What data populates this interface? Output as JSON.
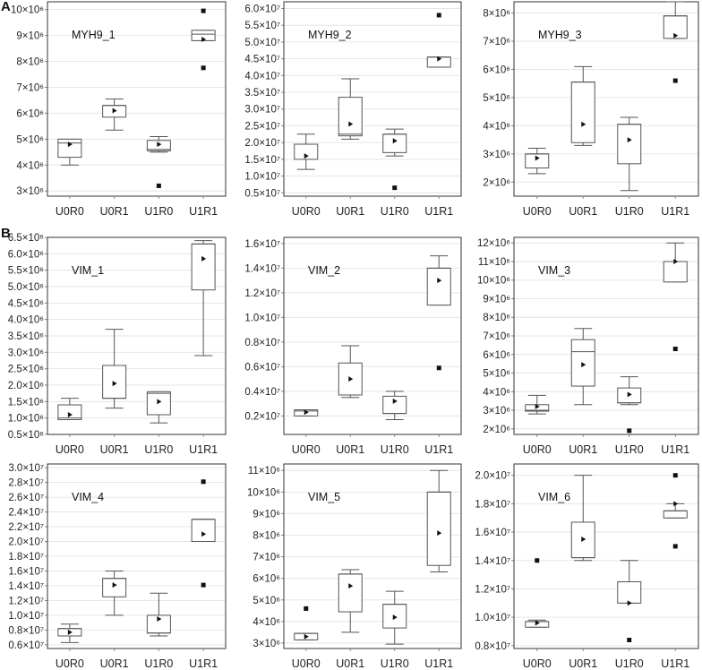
{
  "figure": {
    "panel_A": "A",
    "panel_B": "B"
  },
  "chart_data": [
    {
      "type": "box",
      "title": "MYH9_1",
      "categories": [
        "U0R0",
        "U0R1",
        "U1R0",
        "U1R1"
      ],
      "ylim": [
        2.8,
        10.3
      ],
      "yticks": [
        {
          "v": 3,
          "label": "3×10⁶"
        },
        {
          "v": 4,
          "label": "4×10⁶"
        },
        {
          "v": 5,
          "label": "5×10⁶"
        },
        {
          "v": 6,
          "label": "6×10⁶"
        },
        {
          "v": 7,
          "label": "7×10⁶"
        },
        {
          "v": 8,
          "label": "8×10⁶"
        },
        {
          "v": 9,
          "label": "9×10⁶"
        },
        {
          "v": 10,
          "label": "10×10⁶"
        }
      ],
      "boxes": [
        {
          "category": "U0R0",
          "whisker_low": 4.0,
          "q1": 4.3,
          "median": 4.85,
          "q3": 5.0,
          "whisker_high": 5.0,
          "mean": 4.8,
          "outliers": []
        },
        {
          "category": "U0R1",
          "whisker_low": 5.35,
          "q1": 5.85,
          "median": 6.3,
          "q3": 6.3,
          "whisker_high": 6.55,
          "mean": 6.1,
          "outliers": []
        },
        {
          "category": "U1R0",
          "whisker_low": 4.5,
          "q1": 4.55,
          "median": 4.6,
          "q3": 4.95,
          "whisker_high": 5.1,
          "mean": 4.8,
          "outliers": [
            3.2
          ]
        },
        {
          "category": "U1R1",
          "whisker_low": 8.8,
          "q1": 8.8,
          "median": 9.05,
          "q3": 9.2,
          "whisker_high": 9.2,
          "mean": 8.85,
          "outliers": [
            9.95,
            7.75
          ]
        }
      ]
    },
    {
      "type": "box",
      "title": "MYH9_2",
      "categories": [
        "U0R0",
        "U0R1",
        "U1R0",
        "U1R1"
      ],
      "ylim": [
        0.4,
        6.2
      ],
      "yticks": [
        {
          "v": 0.5,
          "label": "0.5×10⁷"
        },
        {
          "v": 1.0,
          "label": "1.0×10⁷"
        },
        {
          "v": 1.5,
          "label": "1.5×10⁷"
        },
        {
          "v": 2.0,
          "label": "2.0×10⁷"
        },
        {
          "v": 2.5,
          "label": "2.5×10⁷"
        },
        {
          "v": 3.0,
          "label": "3.0×10⁷"
        },
        {
          "v": 3.5,
          "label": "3.5×10⁷"
        },
        {
          "v": 4.0,
          "label": "4.0×10⁷"
        },
        {
          "v": 4.5,
          "label": "4.5×10⁷"
        },
        {
          "v": 5.0,
          "label": "5.0×10⁷"
        },
        {
          "v": 5.5,
          "label": "5.5×10⁷"
        },
        {
          "v": 6.0,
          "label": "6.0×10⁷"
        }
      ],
      "boxes": [
        {
          "category": "U0R0",
          "whisker_low": 1.2,
          "q1": 1.5,
          "median": 1.95,
          "q3": 1.95,
          "whisker_high": 2.25,
          "mean": 1.6,
          "outliers": []
        },
        {
          "category": "U0R1",
          "whisker_low": 2.1,
          "q1": 2.2,
          "median": 2.25,
          "q3": 3.35,
          "whisker_high": 3.9,
          "mean": 2.55,
          "outliers": []
        },
        {
          "category": "U1R0",
          "whisker_low": 1.6,
          "q1": 1.7,
          "median": 2.25,
          "q3": 2.25,
          "whisker_high": 2.4,
          "mean": 2.05,
          "outliers": [
            0.65
          ]
        },
        {
          "category": "U1R1",
          "whisker_low": 4.25,
          "q1": 4.25,
          "median": 4.55,
          "q3": 4.55,
          "whisker_high": 4.55,
          "mean": 4.5,
          "outliers": [
            5.8
          ]
        }
      ]
    },
    {
      "type": "box",
      "title": "MYH9_3",
      "categories": [
        "U0R0",
        "U0R1",
        "U1R0",
        "U1R1"
      ],
      "ylim": [
        1.5,
        8.4
      ],
      "yticks": [
        {
          "v": 2,
          "label": "2×10⁶"
        },
        {
          "v": 3,
          "label": "3×10⁶"
        },
        {
          "v": 4,
          "label": "4×10⁶"
        },
        {
          "v": 5,
          "label": "5×10⁶"
        },
        {
          "v": 6,
          "label": "6×10⁶"
        },
        {
          "v": 7,
          "label": "7×10⁶"
        },
        {
          "v": 8,
          "label": "8×10⁶"
        }
      ],
      "boxes": [
        {
          "category": "U0R0",
          "whisker_low": 2.3,
          "q1": 2.5,
          "median": 3.0,
          "q3": 3.0,
          "whisker_high": 3.2,
          "mean": 2.85,
          "outliers": []
        },
        {
          "category": "U0R1",
          "whisker_low": 3.3,
          "q1": 3.4,
          "median": 5.55,
          "q3": 5.55,
          "whisker_high": 6.1,
          "mean": 4.05,
          "outliers": []
        },
        {
          "category": "U1R0",
          "whisker_low": 1.7,
          "q1": 2.65,
          "median": 4.05,
          "q3": 4.05,
          "whisker_high": 4.3,
          "mean": 3.5,
          "outliers": []
        },
        {
          "category": "U1R1",
          "whisker_low": 7.1,
          "q1": 7.1,
          "median": 7.9,
          "q3": 7.9,
          "whisker_high": 8.4,
          "mean": 7.2,
          "outliers": [
            5.6
          ]
        }
      ]
    },
    {
      "type": "box",
      "title": "VIM_1",
      "categories": [
        "U0R0",
        "U0R1",
        "U1R0",
        "U1R1"
      ],
      "ylim": [
        0.5,
        6.5
      ],
      "yticks": [
        {
          "v": 0.5,
          "label": "0.5×10⁶"
        },
        {
          "v": 1.0,
          "label": "1.0×10⁶"
        },
        {
          "v": 1.5,
          "label": "1.5×10⁶"
        },
        {
          "v": 2.0,
          "label": "2.0×10⁶"
        },
        {
          "v": 2.5,
          "label": "2.5×10⁶"
        },
        {
          "v": 3.0,
          "label": "3.0×10⁶"
        },
        {
          "v": 3.5,
          "label": "3.5×10⁶"
        },
        {
          "v": 4.0,
          "label": "4.0×10⁶"
        },
        {
          "v": 4.5,
          "label": "4.5×10⁶"
        },
        {
          "v": 5.0,
          "label": "5.0×10⁶"
        },
        {
          "v": 5.5,
          "label": "5.5×10⁶"
        },
        {
          "v": 6.0,
          "label": "6.0×10⁶"
        },
        {
          "v": 6.5,
          "label": "6.5×10⁶"
        }
      ],
      "boxes": [
        {
          "category": "U0R0",
          "whisker_low": 0.95,
          "q1": 0.95,
          "median": 1.0,
          "q3": 1.4,
          "whisker_high": 1.6,
          "mean": 1.1,
          "outliers": []
        },
        {
          "category": "U0R1",
          "whisker_low": 1.3,
          "q1": 1.6,
          "median": 1.6,
          "q3": 2.6,
          "whisker_high": 3.7,
          "mean": 2.05,
          "outliers": []
        },
        {
          "category": "U1R0",
          "whisker_low": 0.85,
          "q1": 1.1,
          "median": 1.75,
          "q3": 1.8,
          "whisker_high": 1.8,
          "mean": 1.5,
          "outliers": []
        },
        {
          "category": "U1R1",
          "whisker_low": 2.9,
          "q1": 4.9,
          "median": 6.3,
          "q3": 6.3,
          "whisker_high": 6.4,
          "mean": 5.85,
          "outliers": []
        }
      ]
    },
    {
      "type": "box",
      "title": "VIM_2",
      "categories": [
        "U0R0",
        "U0R1",
        "U1R0",
        "U1R1"
      ],
      "ylim": [
        0.05,
        1.65
      ],
      "yticks": [
        {
          "v": 0.2,
          "label": "0.2×10⁷"
        },
        {
          "v": 0.4,
          "label": "0.4×10⁷"
        },
        {
          "v": 0.6,
          "label": "0.6×10⁷"
        },
        {
          "v": 0.8,
          "label": "0.8×10⁷"
        },
        {
          "v": 1.0,
          "label": "1.0×10⁷"
        },
        {
          "v": 1.2,
          "label": "1.2×10⁷"
        },
        {
          "v": 1.4,
          "label": "1.4×10⁷"
        },
        {
          "v": 1.6,
          "label": "1.6×10⁷"
        }
      ],
      "boxes": [
        {
          "category": "U0R0",
          "whisker_low": 0.2,
          "q1": 0.2,
          "median": 0.24,
          "q3": 0.25,
          "whisker_high": 0.25,
          "mean": 0.23,
          "outliers": []
        },
        {
          "category": "U0R1",
          "whisker_low": 0.35,
          "q1": 0.37,
          "median": 0.37,
          "q3": 0.63,
          "whisker_high": 0.77,
          "mean": 0.5,
          "outliers": []
        },
        {
          "category": "U1R0",
          "whisker_low": 0.17,
          "q1": 0.22,
          "median": 0.22,
          "q3": 0.36,
          "whisker_high": 0.4,
          "mean": 0.32,
          "outliers": []
        },
        {
          "category": "U1R1",
          "whisker_low": 1.1,
          "q1": 1.1,
          "median": 1.4,
          "q3": 1.4,
          "whisker_high": 1.5,
          "mean": 1.3,
          "outliers": [
            0.59
          ]
        }
      ]
    },
    {
      "type": "box",
      "title": "VIM_3",
      "categories": [
        "U0R0",
        "U0R1",
        "U1R0",
        "U1R1"
      ],
      "ylim": [
        1.7,
        12.3
      ],
      "yticks": [
        {
          "v": 2,
          "label": "2×10⁶"
        },
        {
          "v": 3,
          "label": "3×10⁶"
        },
        {
          "v": 4,
          "label": "4×10⁶"
        },
        {
          "v": 5,
          "label": "5×10⁶"
        },
        {
          "v": 6,
          "label": "6×10⁶"
        },
        {
          "v": 7,
          "label": "7×10⁶"
        },
        {
          "v": 8,
          "label": "8×10⁶"
        },
        {
          "v": 9,
          "label": "9×10⁶"
        },
        {
          "v": 10,
          "label": "10×10⁶"
        },
        {
          "v": 11,
          "label": "11×10⁶"
        },
        {
          "v": 12,
          "label": "12×10⁶"
        }
      ],
      "boxes": [
        {
          "category": "U0R0",
          "whisker_low": 2.8,
          "q1": 2.95,
          "median": 3.0,
          "q3": 3.3,
          "whisker_high": 3.8,
          "mean": 3.2,
          "outliers": []
        },
        {
          "category": "U0R1",
          "whisker_low": 3.3,
          "q1": 4.3,
          "median": 6.15,
          "q3": 6.8,
          "whisker_high": 7.4,
          "mean": 5.45,
          "outliers": []
        },
        {
          "category": "U1R0",
          "whisker_low": 3.3,
          "q1": 3.4,
          "median": 3.4,
          "q3": 4.2,
          "whisker_high": 4.8,
          "mean": 3.85,
          "outliers": [
            1.9
          ]
        },
        {
          "category": "U1R1",
          "whisker_low": 9.9,
          "q1": 9.9,
          "median": 11.0,
          "q3": 11.0,
          "whisker_high": 12.0,
          "mean": 11.0,
          "outliers": [
            6.3
          ]
        }
      ]
    },
    {
      "type": "box",
      "title": "VIM_4",
      "categories": [
        "U0R0",
        "U0R1",
        "U1R0",
        "U1R1"
      ],
      "ylim": [
        0.55,
        3.05
      ],
      "yticks": [
        {
          "v": 0.6,
          "label": "0.6×10⁷"
        },
        {
          "v": 0.8,
          "label": "0.8×10⁷"
        },
        {
          "v": 1.0,
          "label": "1.0×10⁷"
        },
        {
          "v": 1.2,
          "label": "1.2×10⁷"
        },
        {
          "v": 1.4,
          "label": "1.4×10⁷"
        },
        {
          "v": 1.6,
          "label": "1.6×10⁷"
        },
        {
          "v": 1.8,
          "label": "1.8×10⁷"
        },
        {
          "v": 2.0,
          "label": "2.0×10⁷"
        },
        {
          "v": 2.2,
          "label": "2.2×10⁷"
        },
        {
          "v": 2.4,
          "label": "2.4×10⁷"
        },
        {
          "v": 2.6,
          "label": "2.6×10⁷"
        },
        {
          "v": 2.8,
          "label": "2.8×10⁷"
        },
        {
          "v": 3.0,
          "label": "3.0×10⁷"
        }
      ],
      "boxes": [
        {
          "category": "U0R0",
          "whisker_low": 0.63,
          "q1": 0.72,
          "median": 0.82,
          "q3": 0.82,
          "whisker_high": 0.88,
          "mean": 0.77,
          "outliers": []
        },
        {
          "category": "U0R1",
          "whisker_low": 1.0,
          "q1": 1.25,
          "median": 1.5,
          "q3": 1.5,
          "whisker_high": 1.6,
          "mean": 1.41,
          "outliers": []
        },
        {
          "category": "U1R0",
          "whisker_low": 0.72,
          "q1": 0.76,
          "median": 0.76,
          "q3": 1.0,
          "whisker_high": 1.3,
          "mean": 0.95,
          "outliers": []
        },
        {
          "category": "U1R1",
          "whisker_low": 2.0,
          "q1": 2.0,
          "median": 2.3,
          "q3": 2.3,
          "whisker_high": 2.3,
          "mean": 2.1,
          "outliers": [
            2.81,
            1.41
          ]
        }
      ]
    },
    {
      "type": "box",
      "title": "VIM_5",
      "categories": [
        "U0R0",
        "U0R1",
        "U1R0",
        "U1R1"
      ],
      "ylim": [
        2.75,
        11.3
      ],
      "yticks": [
        {
          "v": 3,
          "label": "3×10⁶"
        },
        {
          "v": 4,
          "label": "4×10⁶"
        },
        {
          "v": 5,
          "label": "5×10⁶"
        },
        {
          "v": 6,
          "label": "6×10⁶"
        },
        {
          "v": 7,
          "label": "7×10⁶"
        },
        {
          "v": 8,
          "label": "8×10⁶"
        },
        {
          "v": 9,
          "label": "9×10⁶"
        },
        {
          "v": 10,
          "label": "10×10⁶"
        },
        {
          "v": 11,
          "label": "11×10⁶"
        }
      ],
      "boxes": [
        {
          "category": "U0R0",
          "whisker_low": 3.15,
          "q1": 3.15,
          "median": 3.45,
          "q3": 3.45,
          "whisker_high": 3.45,
          "mean": 3.3,
          "outliers": [
            4.6
          ]
        },
        {
          "category": "U0R1",
          "whisker_low": 3.5,
          "q1": 4.45,
          "median": 6.2,
          "q3": 6.2,
          "whisker_high": 6.4,
          "mean": 5.65,
          "outliers": []
        },
        {
          "category": "U1R0",
          "whisker_low": 2.95,
          "q1": 3.7,
          "median": 4.8,
          "q3": 4.8,
          "whisker_high": 5.4,
          "mean": 4.2,
          "outliers": []
        },
        {
          "category": "U1R1",
          "whisker_low": 6.3,
          "q1": 6.6,
          "median": 10.0,
          "q3": 10.0,
          "whisker_high": 11.0,
          "mean": 8.1,
          "outliers": []
        }
      ]
    },
    {
      "type": "box",
      "title": "VIM_6",
      "categories": [
        "U0R0",
        "U0R1",
        "U1R0",
        "U1R1"
      ],
      "ylim": [
        0.78,
        2.08
      ],
      "yticks": [
        {
          "v": 0.8,
          "label": "0.8×10⁷"
        },
        {
          "v": 1.0,
          "label": "1.0×10⁷"
        },
        {
          "v": 1.2,
          "label": "1.2×10⁷"
        },
        {
          "v": 1.4,
          "label": "1.4×10⁷"
        },
        {
          "v": 1.6,
          "label": "1.6×10⁷"
        },
        {
          "v": 1.8,
          "label": "1.8×10⁷"
        },
        {
          "v": 2.0,
          "label": "2.0×10⁷"
        }
      ],
      "boxes": [
        {
          "category": "U0R0",
          "whisker_low": 0.93,
          "q1": 0.93,
          "median": 0.97,
          "q3": 0.97,
          "whisker_high": 0.98,
          "mean": 0.96,
          "outliers": [
            1.4
          ]
        },
        {
          "category": "U0R1",
          "whisker_low": 1.4,
          "q1": 1.42,
          "median": 1.42,
          "q3": 1.67,
          "whisker_high": 2.0,
          "mean": 1.55,
          "outliers": []
        },
        {
          "category": "U1R0",
          "whisker_low": 1.1,
          "q1": 1.1,
          "median": 1.25,
          "q3": 1.25,
          "whisker_high": 1.4,
          "mean": 1.1,
          "outliers": [
            0.84
          ]
        },
        {
          "category": "U1R1",
          "whisker_low": 1.7,
          "q1": 1.7,
          "median": 1.75,
          "q3": 1.75,
          "whisker_high": 1.8,
          "mean": 1.8,
          "outliers": [
            2.0,
            1.5
          ]
        }
      ]
    }
  ]
}
